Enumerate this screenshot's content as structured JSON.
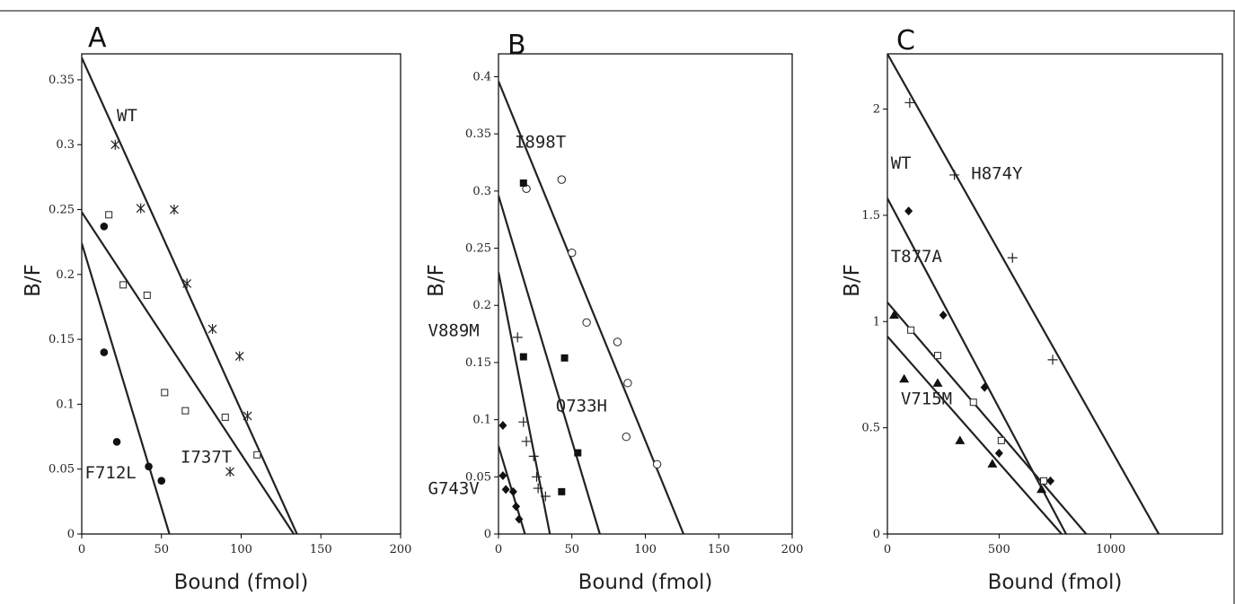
{
  "chart_data": [
    {
      "type": "scatter",
      "panel_label": "A",
      "xlabel": "Bound (fmol)",
      "ylabel": "B/F",
      "xlim": [
        0,
        200
      ],
      "ylim": [
        0,
        0.37
      ],
      "xticks": [
        0,
        50,
        100,
        150,
        200
      ],
      "yticks": [
        0,
        0.05,
        0.1,
        0.15,
        0.2,
        0.25,
        0.3,
        0.35
      ],
      "xtick_labels": [
        "0",
        "50",
        "100",
        "150",
        "200"
      ],
      "ytick_labels": [
        "0",
        "0.05",
        "0.1",
        "0.15",
        "0.2",
        "0.25",
        "0.3",
        "0.35"
      ],
      "grid": false,
      "series": [
        {
          "name": "WT",
          "marker": "asterisk",
          "x": [
            21,
            37,
            58,
            66,
            82,
            99,
            104,
            93
          ],
          "y": [
            0.3,
            0.251,
            0.25,
            0.193,
            0.158,
            0.137,
            0.091,
            0.048
          ],
          "fit": [
            [
              0,
              0.367
            ],
            [
              135,
              0
            ]
          ]
        },
        {
          "name": "I737T",
          "marker": "open-square",
          "x": [
            17,
            26,
            41,
            52,
            65,
            90,
            110
          ],
          "y": [
            0.246,
            0.192,
            0.184,
            0.109,
            0.095,
            0.09,
            0.061
          ],
          "fit": [
            [
              0,
              0.248
            ],
            [
              133,
              0
            ]
          ]
        },
        {
          "name": "F712L",
          "marker": "filled-circle",
          "x": [
            14,
            14,
            22,
            42,
            50
          ],
          "y": [
            0.237,
            0.14,
            0.071,
            0.052,
            0.041
          ],
          "fit": [
            [
              0,
              0.224
            ],
            [
              55,
              0
            ]
          ]
        }
      ],
      "annotations": [
        {
          "text": "WT",
          "x": 22,
          "y": 0.318
        },
        {
          "text": "I737T",
          "x": 62,
          "y": 0.055
        },
        {
          "text": "F712L",
          "x": 2,
          "y": 0.043
        }
      ]
    },
    {
      "type": "scatter",
      "panel_label": "B",
      "xlabel": "Bound (fmol)",
      "ylabel": "B/F",
      "xlim": [
        0,
        200
      ],
      "ylim": [
        0,
        0.42
      ],
      "xticks": [
        0,
        50,
        100,
        150,
        200
      ],
      "yticks": [
        0,
        0.05,
        0.1,
        0.15,
        0.2,
        0.25,
        0.3,
        0.35,
        0.4
      ],
      "xtick_labels": [
        "0",
        "50",
        "100",
        "150",
        "200"
      ],
      "ytick_labels": [
        "0",
        "0.05",
        "0.1",
        "0.15",
        "0.2",
        "0.25",
        "0.3",
        "0.35",
        "0.4"
      ],
      "grid": false,
      "series": [
        {
          "name": "I898T",
          "marker": "open-circle",
          "x": [
            19,
            43,
            50,
            60,
            81,
            87,
            88,
            108
          ],
          "y": [
            0.302,
            0.31,
            0.246,
            0.185,
            0.168,
            0.085,
            0.132,
            0.061
          ],
          "fit": [
            [
              0,
              0.396
            ],
            [
              126,
              0
            ]
          ]
        },
        {
          "name": "Q733H",
          "marker": "filled-square",
          "x": [
            17,
            17,
            45,
            54,
            43
          ],
          "y": [
            0.307,
            0.155,
            0.154,
            0.071,
            0.037
          ],
          "fit": [
            [
              0,
              0.296
            ],
            [
              69,
              0
            ]
          ]
        },
        {
          "name": "V889M",
          "marker": "plus",
          "x": [
            13,
            17,
            19,
            24,
            26,
            27,
            32
          ],
          "y": [
            0.172,
            0.098,
            0.081,
            0.068,
            0.05,
            0.04,
            0.033
          ],
          "fit": [
            [
              0,
              0.229
            ],
            [
              35,
              0
            ]
          ]
        },
        {
          "name": "G743V",
          "marker": "filled-diamond",
          "x": [
            3,
            3,
            5,
            10,
            12,
            14
          ],
          "y": [
            0.095,
            0.051,
            0.039,
            0.037,
            0.024,
            0.013
          ],
          "fit": [
            [
              0,
              0.077
            ],
            [
              18,
              0
            ]
          ]
        }
      ],
      "annotations": [
        {
          "text": "I898T",
          "x": 11,
          "y": 0.338
        },
        {
          "text": "V889M",
          "x": -48,
          "y": 0.173
        },
        {
          "text": "Q733H",
          "x": 39,
          "y": 0.107
        },
        {
          "text": "G743V",
          "x": -48,
          "y": 0.035
        }
      ]
    },
    {
      "type": "scatter",
      "panel_label": "C",
      "xlabel": "Bound (fmol)",
      "ylabel": "B/F",
      "xlim": [
        0,
        1500
      ],
      "ylim": [
        0,
        2.26
      ],
      "xticks": [
        0,
        500,
        1000
      ],
      "yticks": [
        0,
        0.5,
        1,
        1.5,
        2
      ],
      "xtick_labels": [
        "0",
        "500",
        "1000"
      ],
      "ytick_labels": [
        "0",
        "0.5",
        "1",
        "1.5",
        "2"
      ],
      "grid": false,
      "series": [
        {
          "name": "H874Y",
          "marker": "plus",
          "x": [
            100,
            300,
            560,
            740
          ],
          "y": [
            2.03,
            1.69,
            1.3,
            0.82
          ],
          "fit": [
            [
              0,
              2.26
            ],
            [
              1215,
              0
            ]
          ]
        },
        {
          "name": "WT",
          "marker": "filled-diamond",
          "x": [
            95,
            250,
            435,
            500,
            730
          ],
          "y": [
            1.52,
            1.03,
            0.69,
            0.38,
            0.25
          ],
          "fit": [
            [
              0,
              1.58
            ],
            [
              800,
              0
            ]
          ]
        },
        {
          "name": "T877A",
          "marker": "open-square",
          "x": [
            105,
            225,
            385,
            510,
            700
          ],
          "y": [
            0.96,
            0.84,
            0.62,
            0.44,
            0.25
          ],
          "fit": [
            [
              0,
              1.09
            ],
            [
              890,
              0
            ]
          ]
        },
        {
          "name": "V715M",
          "marker": "filled-triangle",
          "x": [
            30,
            75,
            225,
            325,
            470,
            690
          ],
          "y": [
            1.03,
            0.73,
            0.71,
            0.44,
            0.33,
            0.21
          ],
          "fit": [
            [
              0,
              0.93
            ],
            [
              780,
              0
            ]
          ]
        }
      ],
      "annotations": [
        {
          "text": "H874Y",
          "x": 375,
          "y": 1.67
        },
        {
          "text": "WT",
          "x": 15,
          "y": 1.72
        },
        {
          "text": "T877A",
          "x": 15,
          "y": 1.28
        },
        {
          "text": "V715M",
          "x": 60,
          "y": 0.61
        }
      ]
    }
  ]
}
